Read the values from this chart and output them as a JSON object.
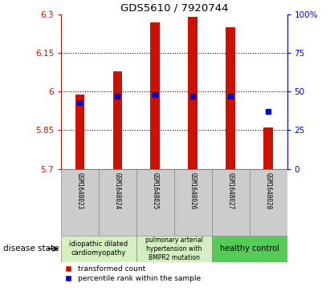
{
  "title": "GDS5610 / 7920744",
  "samples": [
    "GSM1648023",
    "GSM1648024",
    "GSM1648025",
    "GSM1648026",
    "GSM1648027",
    "GSM1648028"
  ],
  "bar_bottoms": [
    5.7,
    5.7,
    5.7,
    5.7,
    5.7,
    5.7
  ],
  "bar_tops": [
    5.99,
    6.08,
    6.27,
    6.29,
    6.25,
    5.86
  ],
  "percentile_ranks": [
    43,
    47,
    48,
    47,
    47,
    37
  ],
  "ylim": [
    5.7,
    6.3
  ],
  "right_ylim": [
    0,
    100
  ],
  "yticks_left": [
    5.7,
    5.85,
    6.0,
    6.15,
    6.3
  ],
  "yticks_right": [
    0,
    25,
    50,
    75,
    100
  ],
  "ytick_labels_left": [
    "5.7",
    "5.85",
    "6",
    "6.15",
    "6.3"
  ],
  "ytick_labels_right": [
    "0",
    "25",
    "50",
    "75",
    "100%"
  ],
  "hlines": [
    5.85,
    6.0,
    6.15
  ],
  "bar_color": "#cc1100",
  "dot_color": "#0000cc",
  "group_colors": [
    "#d4efc0",
    "#d4efc0",
    "#55cc55"
  ],
  "group_starts": [
    -0.5,
    1.5,
    3.5
  ],
  "group_ends": [
    1.5,
    3.5,
    5.5
  ],
  "group_labels": [
    "idiopathic dilated\ncardiomyopathy",
    "pulmonary arterial\nhypertension with\nBMPR2 mutation",
    "healthy control"
  ],
  "disease_label": "disease state",
  "legend_red": "transformed count",
  "legend_blue": "percentile rank within the sample",
  "bar_width": 0.25
}
